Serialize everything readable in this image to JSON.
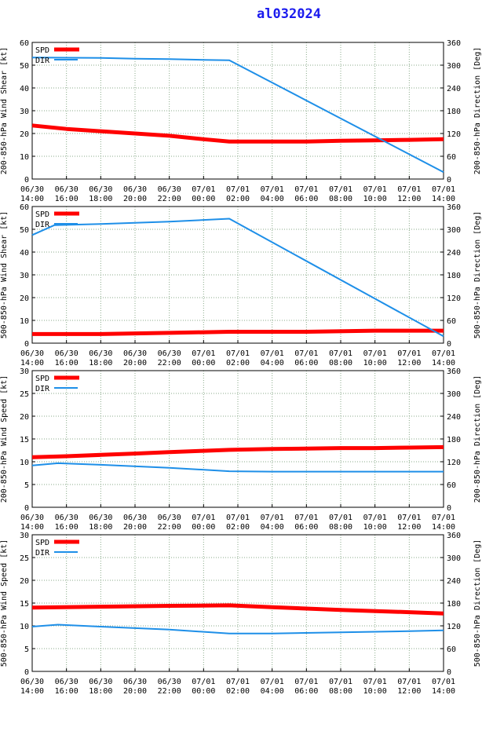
{
  "title": "al032024",
  "x_tick_labels": [
    [
      "06/30",
      "14:00"
    ],
    [
      "06/30",
      "16:00"
    ],
    [
      "06/30",
      "18:00"
    ],
    [
      "06/30",
      "20:00"
    ],
    [
      "06/30",
      "22:00"
    ],
    [
      "07/01",
      "00:00"
    ],
    [
      "07/01",
      "02:00"
    ],
    [
      "07/01",
      "04:00"
    ],
    [
      "07/01",
      "06:00"
    ],
    [
      "07/01",
      "08:00"
    ],
    [
      "07/01",
      "10:00"
    ],
    [
      "07/01",
      "12:00"
    ],
    [
      "07/01",
      "14:00"
    ]
  ],
  "legend": {
    "spd_label": "SPD",
    "dir_label": "DIR"
  },
  "colors": {
    "spd": "#ff0000",
    "dir": "#1e8fe8",
    "title": "#1a1aee",
    "grid": "#88aa88"
  },
  "chart_data": [
    {
      "type": "line",
      "ylabel": "200-850-hPa Wind Shear [kt]",
      "y2label": "200-850-hPa Direction [Deg]",
      "ylim": [
        0,
        60
      ],
      "yticks": [
        0,
        10,
        20,
        30,
        40,
        50,
        60
      ],
      "y2lim": [
        0,
        360
      ],
      "y2ticks": [
        0,
        60,
        120,
        180,
        240,
        300,
        360
      ],
      "grid": true,
      "legend_position": "top-left",
      "series": [
        {
          "name": "SPD",
          "axis": "left",
          "x": [
            0,
            2,
            4,
            6,
            8,
            10,
            11.5,
            14,
            16,
            18,
            20,
            22,
            24
          ],
          "y": [
            23.5,
            22,
            21,
            20,
            19,
            17.5,
            16.5,
            16.5,
            16.5,
            16.8,
            17,
            17.2,
            17.5
          ]
        },
        {
          "name": "DIR",
          "axis": "right",
          "x": [
            0,
            4,
            6,
            8,
            10,
            11.5,
            24
          ],
          "y": [
            320,
            319,
            317,
            316,
            314,
            313,
            18
          ]
        }
      ]
    },
    {
      "type": "line",
      "ylabel": "500-850-hPa Wind Shear [kt]",
      "y2label": "500-850-hPa Direction [Deg]",
      "ylim": [
        0,
        60
      ],
      "yticks": [
        0,
        10,
        20,
        30,
        40,
        50,
        60
      ],
      "y2lim": [
        0,
        360
      ],
      "y2ticks": [
        0,
        60,
        120,
        180,
        240,
        300,
        360
      ],
      "grid": true,
      "legend_position": "top-left",
      "series": [
        {
          "name": "SPD",
          "axis": "left",
          "x": [
            0,
            4,
            8,
            11.5,
            16,
            20,
            24
          ],
          "y": [
            4,
            4,
            4.5,
            5,
            5,
            5.5,
            5.5
          ]
        },
        {
          "name": "DIR",
          "axis": "right",
          "x": [
            0,
            1.3,
            4,
            8,
            11.5,
            24
          ],
          "y": [
            285,
            311,
            314,
            320,
            328,
            18
          ]
        }
      ]
    },
    {
      "type": "line",
      "ylabel": "200-850-hPa Wind Speed [kt]",
      "y2label": "200-850-hPa Direction [Deg]",
      "ylim": [
        0,
        30
      ],
      "yticks": [
        0,
        5,
        10,
        15,
        20,
        25,
        30
      ],
      "y2lim": [
        0,
        360
      ],
      "y2ticks": [
        0,
        60,
        120,
        180,
        240,
        300,
        360
      ],
      "grid": true,
      "legend_position": "top-left",
      "series": [
        {
          "name": "SPD",
          "axis": "left",
          "x": [
            0,
            2,
            4,
            6,
            8,
            10,
            11.5,
            14,
            16,
            18,
            20,
            22,
            24
          ],
          "y": [
            11,
            11.2,
            11.5,
            11.8,
            12.1,
            12.4,
            12.6,
            12.8,
            12.9,
            13,
            13,
            13.1,
            13.2
          ]
        },
        {
          "name": "DIR",
          "axis": "right",
          "x": [
            0,
            1.5,
            4,
            8,
            11.5,
            14,
            24
          ],
          "y": [
            110,
            116,
            112,
            104,
            95,
            94,
            94
          ]
        }
      ]
    },
    {
      "type": "line",
      "ylabel": "500-850-hPa Wind Speed [kt]",
      "y2label": "500-850-hPa Direction [Deg]",
      "ylim": [
        0,
        30
      ],
      "yticks": [
        0,
        5,
        10,
        15,
        20,
        25,
        30
      ],
      "y2lim": [
        0,
        360
      ],
      "y2ticks": [
        0,
        60,
        120,
        180,
        240,
        300,
        360
      ],
      "grid": true,
      "legend_position": "top-left",
      "series": [
        {
          "name": "SPD",
          "axis": "left",
          "x": [
            0,
            4,
            8,
            11.5,
            14,
            18,
            22,
            24
          ],
          "y": [
            14,
            14.2,
            14.4,
            14.5,
            14.1,
            13.5,
            13,
            12.7
          ]
        },
        {
          "name": "DIR",
          "axis": "right",
          "x": [
            0,
            1.5,
            4,
            8,
            11.5,
            14,
            18,
            22,
            24
          ],
          "y": [
            118,
            123,
            118,
            110,
            100,
            100,
            103,
            106,
            108
          ]
        }
      ]
    }
  ]
}
